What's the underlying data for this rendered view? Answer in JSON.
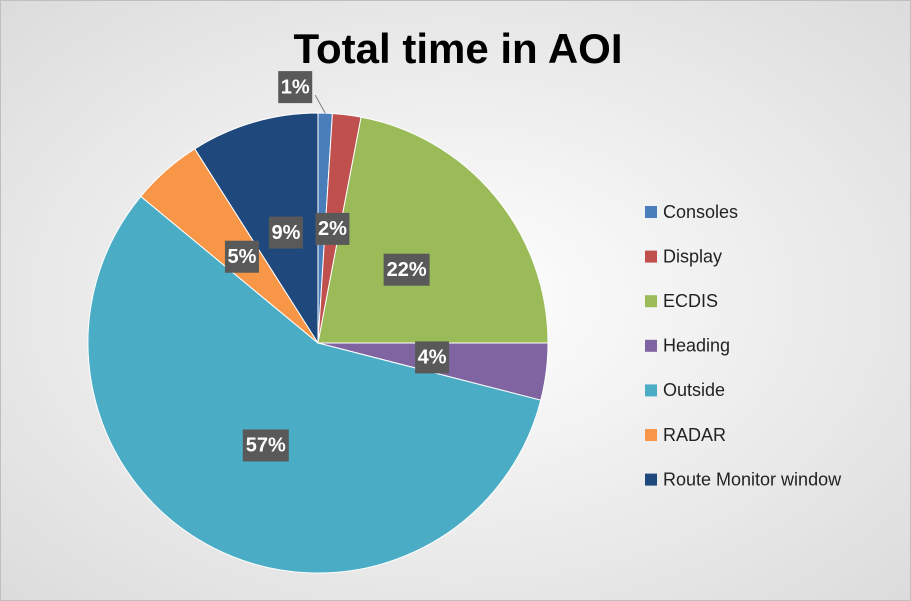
{
  "chart_data": {
    "type": "pie",
    "title": "Total time in AOI",
    "categories": [
      "Consoles",
      "Display",
      "ECDIS",
      "Heading",
      "Outside",
      "RADAR",
      "Route Monitor window"
    ],
    "values": [
      1,
      2,
      22,
      4,
      57,
      5,
      9
    ],
    "value_labels": [
      "1%",
      "2%",
      "22%",
      "4%",
      "57%",
      "5%",
      "9%"
    ],
    "colors": [
      "#4a7ebb",
      "#c0504d",
      "#9bbb59",
      "#8064a2",
      "#4bacc6",
      "#f79646",
      "#1f497d"
    ],
    "legend": "right"
  }
}
